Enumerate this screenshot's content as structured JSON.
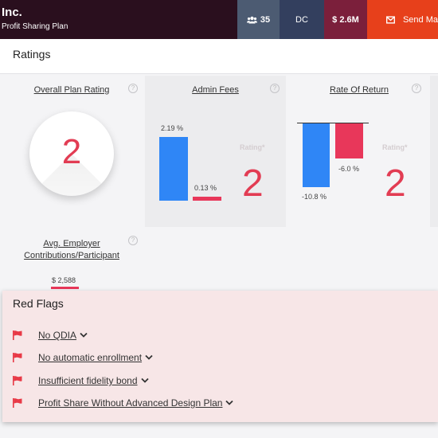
{
  "header": {
    "company": "Inc.",
    "plan": "Profit Sharing Plan",
    "participants": "35",
    "plan_type": "DC",
    "assets": "$ 2.6M",
    "send_label": "Send Ma"
  },
  "ratings": {
    "title": "Ratings",
    "overall": {
      "title": "Overall Plan Rating",
      "value": "2"
    },
    "admin_fees": {
      "title": "Admin Fees",
      "plan_label": "2.19 %",
      "benchmark_label": "0.13 %",
      "plan_value": 2.19,
      "benchmark_value": 0.13,
      "rating_label": "Rating*",
      "rating": "2"
    },
    "rate_of_return": {
      "title": "Rate Of Return",
      "plan_label": "-10.8 %",
      "benchmark_label": "-6.0 %",
      "plan_value": -10.8,
      "benchmark_value": -6.0,
      "rating_label": "Rating*",
      "rating": "2"
    },
    "employer_contrib": {
      "title_line1": "Avg. Employer",
      "title_line2": "Contributions/Participant",
      "value": "$ 2,588"
    },
    "help": "?"
  },
  "red_flags": {
    "title": "Red Flags",
    "items": [
      "No QDIA",
      "No automatic enrollment",
      "Insufficient fidelity bond",
      "Profit Share Without Advanced Design Plan"
    ]
  },
  "colors": {
    "plan_bar": "#2f86f6",
    "benchmark_bar": "#e8375a",
    "flag": "#e83a47",
    "accent": "#e7401b"
  },
  "icons": {
    "participants": "users-icon",
    "send": "envelope-icon",
    "flag": "flag-icon",
    "chevron": "chevron-down-icon",
    "help": "help-circle-icon"
  }
}
